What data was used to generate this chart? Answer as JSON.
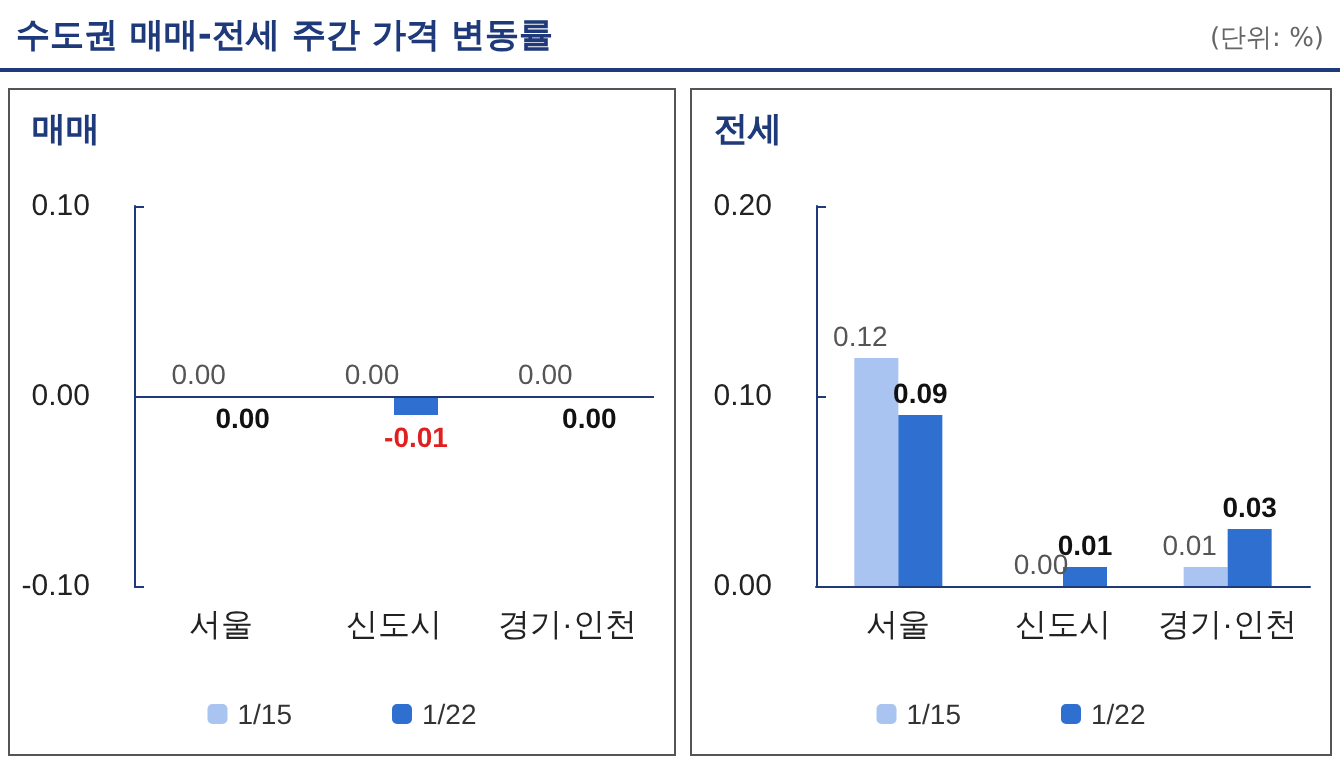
{
  "chart_data": [
    {
      "type": "bar",
      "title": "수도권 매매-전세 주간 가격 변동률",
      "subtitle": "매매",
      "categories": [
        "서울",
        "신도시",
        "경기·인천"
      ],
      "series": [
        {
          "name": "1/15",
          "color": "#a9c4f0",
          "values": [
            0.0,
            0.0,
            0.0
          ],
          "value_labels": [
            "0.00",
            "0.00",
            "0.00"
          ]
        },
        {
          "name": "1/22",
          "color": "#2f6fcf",
          "values": [
            0.0,
            -0.01,
            0.0
          ],
          "value_labels": [
            "0.00",
            "-0.01",
            "0.00"
          ]
        }
      ],
      "ylim": [
        -0.1,
        0.1
      ],
      "yticks": [
        {
          "value": -0.1,
          "label": "-0.10"
        },
        {
          "value": 0,
          "label": "0.00"
        },
        {
          "value": 0.1,
          "label": "0.10"
        }
      ],
      "legend": "bottom",
      "ref_lines": [
        {
          "axis": "y",
          "value": 0,
          "color": "#1f3a7a"
        }
      ]
    },
    {
      "type": "bar",
      "title": "전세",
      "annotations": [
        "(단위: %)"
      ],
      "categories": [
        "서울",
        "신도시",
        "경기·인천"
      ],
      "series": [
        {
          "name": "1/15",
          "color": "#a9c4f0",
          "values": [
            0.12,
            0.0,
            0.01
          ],
          "value_labels": [
            "0.12",
            "0.00",
            "0.01"
          ]
        },
        {
          "name": "1/22",
          "color": "#2f6fcf",
          "values": [
            0.09,
            0.01,
            0.03
          ],
          "value_labels": [
            "0.09",
            "0.01",
            "0.03"
          ]
        }
      ],
      "ylim": [
        0,
        0.2
      ],
      "yticks": [
        {
          "value": 0,
          "label": "0.00"
        },
        {
          "value": 0.1,
          "label": "0.10"
        },
        {
          "value": 0.2,
          "label": "0.20"
        }
      ],
      "legend": "bottom"
    }
  ]
}
